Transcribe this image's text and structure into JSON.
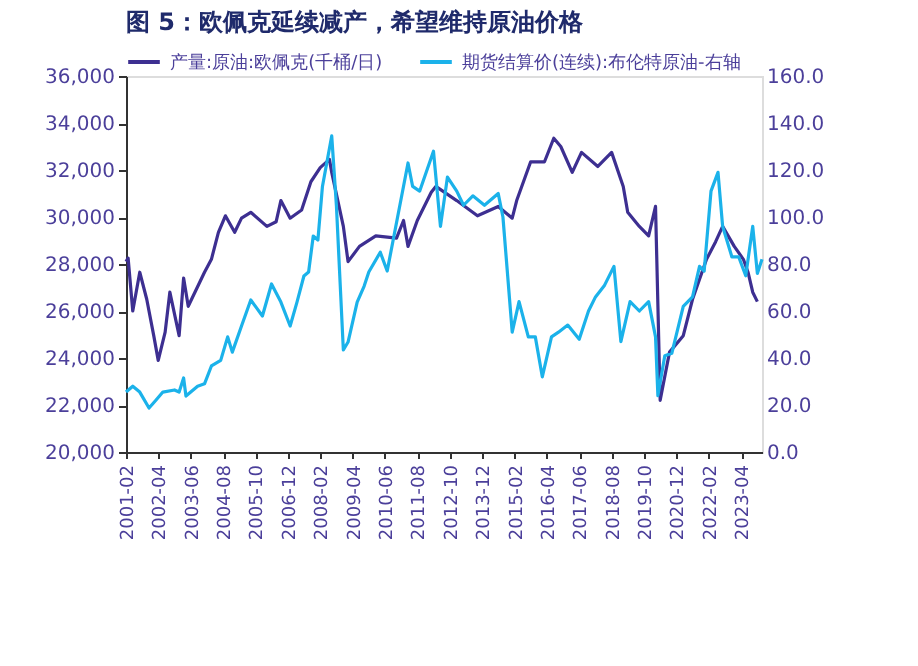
{
  "chart_data": {
    "type": "line",
    "title": "图 5：欧佩克延续减产，希望维持原油价格",
    "legend": "top",
    "grid": false,
    "xlim": [
      "2001-02",
      "2024-01"
    ],
    "xticks": [
      {
        "value": "2001-02",
        "label": "2001-02"
      },
      {
        "value": "2002-04",
        "label": "2002-04"
      },
      {
        "value": "2003-06",
        "label": "2003-06"
      },
      {
        "value": "2004-08",
        "label": "2004-08"
      },
      {
        "value": "2005-10",
        "label": "2005-10"
      },
      {
        "value": "2006-12",
        "label": "2006-12"
      },
      {
        "value": "2008-02",
        "label": "2008-02"
      },
      {
        "value": "2009-04",
        "label": "2009-04"
      },
      {
        "value": "2010-06",
        "label": "2010-06"
      },
      {
        "value": "2011-08",
        "label": "2011-08"
      },
      {
        "value": "2012-10",
        "label": "2012-10"
      },
      {
        "value": "2013-12",
        "label": "2013-12"
      },
      {
        "value": "2015-02",
        "label": "2015-02"
      },
      {
        "value": "2016-04",
        "label": "2016-04"
      },
      {
        "value": "2017-06",
        "label": "2017-06"
      },
      {
        "value": "2018-08",
        "label": "2018-08"
      },
      {
        "value": "2019-10",
        "label": "2019-10"
      },
      {
        "value": "2020-12",
        "label": "2020-12"
      },
      {
        "value": "2022-02",
        "label": "2022-02"
      },
      {
        "value": "2023-04",
        "label": "2023-04"
      }
    ],
    "ylim": [
      20000,
      36000
    ],
    "yticks": [
      {
        "value": 20000,
        "label": "20,000"
      },
      {
        "value": 22000,
        "label": "22,000"
      },
      {
        "value": 24000,
        "label": "24,000"
      },
      {
        "value": 26000,
        "label": "26,000"
      },
      {
        "value": 28000,
        "label": "28,000"
      },
      {
        "value": 30000,
        "label": "30,000"
      },
      {
        "value": 32000,
        "label": "32,000"
      },
      {
        "value": 34000,
        "label": "34,000"
      },
      {
        "value": 36000,
        "label": "36,000"
      }
    ],
    "y2lim": [
      0,
      160
    ],
    "y2ticks": [
      {
        "value": 0,
        "label": "0.0"
      },
      {
        "value": 20,
        "label": "20.0"
      },
      {
        "value": 40,
        "label": "40.0"
      },
      {
        "value": 60,
        "label": "60.0"
      },
      {
        "value": 80,
        "label": "80.0"
      },
      {
        "value": 100,
        "label": "100.0"
      },
      {
        "value": 120,
        "label": "120.0"
      },
      {
        "value": 140,
        "label": "140.0"
      },
      {
        "value": 160,
        "label": "160.0"
      }
    ],
    "series": [
      {
        "name": "产量:原油:欧佩克(千桶/日)",
        "color": "#3d2f91",
        "x": [
          "2001-02",
          "2001-03",
          "2001-05",
          "2001-08",
          "2001-11",
          "2002-02",
          "2002-04",
          "2002-07",
          "2002-09",
          "2003-01",
          "2003-03",
          "2003-05",
          "2003-12",
          "2004-03",
          "2004-06",
          "2004-09",
          "2005-01",
          "2005-04",
          "2005-08",
          "2006-03",
          "2006-07",
          "2006-09",
          "2007-01",
          "2007-06",
          "2007-10",
          "2008-02",
          "2008-06",
          "2008-07",
          "2008-12",
          "2009-02",
          "2009-07",
          "2010-02",
          "2010-11",
          "2011-02",
          "2011-04",
          "2011-08",
          "2012-02",
          "2012-04",
          "2013-01",
          "2013-10",
          "2014-07",
          "2015-01",
          "2015-03",
          "2015-09",
          "2016-03",
          "2016-07",
          "2016-10",
          "2017-03",
          "2017-07",
          "2018-02",
          "2018-08",
          "2019-01",
          "2019-03",
          "2019-08",
          "2019-12",
          "2020-03",
          "2020-05",
          "2020-09",
          "2021-03",
          "2021-07",
          "2022-01",
          "2022-05",
          "2022-08",
          "2023-01",
          "2023-05",
          "2023-07",
          "2023-09",
          "2023-11"
        ],
        "values": [
          28100,
          28250,
          26000,
          27650,
          26500,
          24950,
          23900,
          25100,
          26800,
          24950,
          27400,
          26200,
          27650,
          28200,
          29350,
          30050,
          29350,
          29950,
          30200,
          29600,
          29800,
          30700,
          29950,
          30300,
          31500,
          32100,
          32450,
          31900,
          29600,
          28100,
          28750,
          29200,
          29100,
          29850,
          28750,
          29850,
          31050,
          31300,
          30700,
          30050,
          30450,
          29950,
          30700,
          32350,
          32350,
          33350,
          33000,
          31900,
          32750,
          32150,
          32750,
          31300,
          30200,
          29600,
          29200,
          30450,
          22200,
          24250,
          24950,
          26500,
          28200,
          28950,
          29600,
          28750,
          28200,
          27650,
          26800,
          26400
        ]
      },
      {
        "name": "期货结算价(连续):布伦特原油-右轴",
        "color": "#1bb2ea",
        "axis": "y2",
        "x": [
          "2001-02",
          "2001-05",
          "2001-08",
          "2001-12",
          "2002-03",
          "2002-06",
          "2002-11",
          "2003-01",
          "2003-03",
          "2003-04",
          "2003-09",
          "2003-12",
          "2004-03",
          "2004-07",
          "2004-10",
          "2004-12",
          "2005-04",
          "2005-08",
          "2006-01",
          "2006-05",
          "2006-09",
          "2007-01",
          "2007-04",
          "2007-07",
          "2007-09",
          "2007-11",
          "2008-01",
          "2008-03",
          "2008-07",
          "2008-09",
          "2008-12",
          "2009-02",
          "2009-06",
          "2009-09",
          "2009-11",
          "2010-04",
          "2010-07",
          "2011-04",
          "2011-06",
          "2011-09",
          "2012-03",
          "2012-06",
          "2012-09",
          "2013-01",
          "2013-04",
          "2013-08",
          "2014-01",
          "2014-07",
          "2014-09",
          "2015-01",
          "2015-04",
          "2015-08",
          "2015-11",
          "2016-02",
          "2016-06",
          "2016-09",
          "2017-01",
          "2017-06",
          "2017-10",
          "2018-01",
          "2018-05",
          "2018-09",
          "2018-12",
          "2019-04",
          "2019-08",
          "2019-12",
          "2020-03",
          "2020-04",
          "2020-07",
          "2020-10",
          "2021-03",
          "2021-07",
          "2021-10",
          "2021-12",
          "2022-03",
          "2022-06",
          "2022-08",
          "2022-12",
          "2023-03",
          "2023-06",
          "2023-09",
          "2023-11",
          "2024-01"
        ],
        "values": [
          25.5,
          28,
          25.5,
          18.7,
          22,
          25.5,
          26.4,
          25.5,
          31.5,
          23.8,
          28,
          29,
          36.6,
          39,
          49,
          42.5,
          53.6,
          64.7,
          57.9,
          71.5,
          63.8,
          53.6,
          63.8,
          74.9,
          76.6,
          91.9,
          90.2,
          113,
          134.5,
          104.7,
          43.4,
          46.8,
          63.8,
          70.6,
          76.6,
          85,
          77,
          123,
          113,
          111,
          128,
          96,
          117,
          111,
          105,
          109,
          105,
          110,
          100,
          51,
          64,
          49,
          49,
          32,
          49,
          51,
          54,
          48,
          60,
          66,
          71,
          79,
          47,
          64,
          60,
          64,
          49,
          24,
          41,
          42,
          62,
          66,
          79,
          77,
          111,
          119,
          96,
          83,
          83,
          75,
          96,
          76,
          82
        ]
      }
    ]
  }
}
